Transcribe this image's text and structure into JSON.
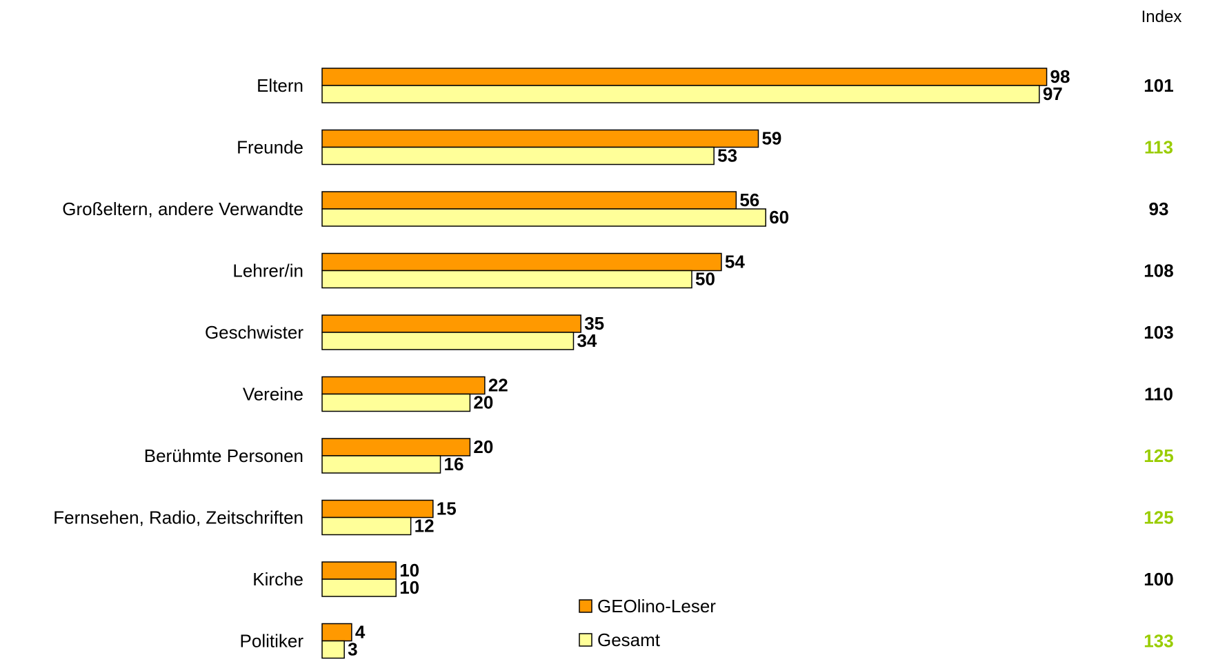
{
  "chart_data": {
    "type": "bar",
    "orientation": "horizontal",
    "categories": [
      "Eltern",
      "Freunde",
      "Großeltern, andere Verwandte",
      "Lehrer/in",
      "Geschwister",
      "Vereine",
      "Berühmte Personen",
      "Fernsehen, Radio, Zeitschriften",
      "Kirche",
      "Politiker"
    ],
    "series": [
      {
        "name": "GEOlino-Leser",
        "color": "#ff9900",
        "values": [
          98,
          59,
          56,
          54,
          35,
          22,
          20,
          15,
          10,
          4
        ]
      },
      {
        "name": "Gesamt",
        "color": "#ffff99",
        "values": [
          97,
          53,
          60,
          50,
          34,
          20,
          16,
          12,
          10,
          3
        ]
      }
    ],
    "index": {
      "header": "Index",
      "values": [
        "101",
        "113",
        "93",
        "108",
        "103",
        "110",
        "125",
        "125",
        "100",
        "133"
      ],
      "highlight": [
        false,
        true,
        false,
        false,
        false,
        false,
        true,
        true,
        false,
        true
      ],
      "highlight_color": "#99cc00",
      "normal_color": "#000000"
    },
    "xlim": [
      0,
      100
    ],
    "grid": false,
    "legend": "bottom-center"
  }
}
